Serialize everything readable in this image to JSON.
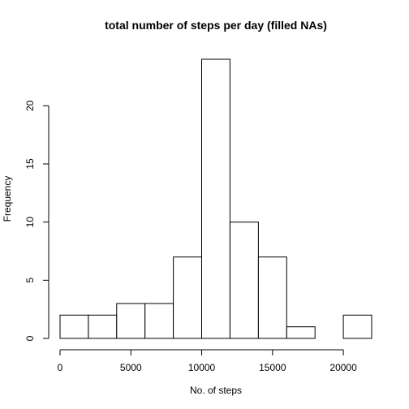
{
  "chart_data": {
    "type": "bar",
    "title": "total number of steps per day (filled NAs)",
    "xlabel": "No. of steps",
    "ylabel": "Frequency",
    "bins": [
      {
        "start": 0,
        "end": 2000,
        "count": 2
      },
      {
        "start": 2000,
        "end": 4000,
        "count": 2
      },
      {
        "start": 4000,
        "end": 6000,
        "count": 3
      },
      {
        "start": 6000,
        "end": 8000,
        "count": 3
      },
      {
        "start": 8000,
        "end": 10000,
        "count": 7
      },
      {
        "start": 10000,
        "end": 12000,
        "count": 24
      },
      {
        "start": 12000,
        "end": 14000,
        "count": 10
      },
      {
        "start": 14000,
        "end": 16000,
        "count": 7
      },
      {
        "start": 16000,
        "end": 18000,
        "count": 1
      },
      {
        "start": 18000,
        "end": 20000,
        "count": 0
      },
      {
        "start": 20000,
        "end": 22000,
        "count": 2
      }
    ],
    "xlim": [
      0,
      22000
    ],
    "ylim": [
      0,
      24
    ],
    "x_ticks": [
      0,
      5000,
      10000,
      15000,
      20000
    ],
    "x_tick_labels": [
      "0",
      "5000",
      "10000",
      "15000",
      "20000"
    ],
    "y_ticks": [
      0,
      5,
      10,
      15,
      20
    ],
    "y_tick_labels": [
      "0",
      "5",
      "10",
      "15",
      "20"
    ],
    "grid": false,
    "bar_fill": "#ffffff",
    "bar_stroke": "#000000"
  }
}
